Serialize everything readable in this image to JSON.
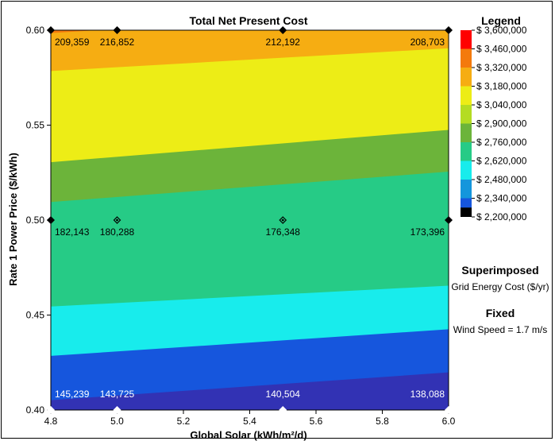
{
  "chart_data": {
    "type": "heatmap",
    "title": "Total Net Present Cost",
    "xlabel": "Global Solar (kWh/m²/d)",
    "ylabel": "Rate 1 Power Price ($/kWh)",
    "xlim": [
      4.8,
      6.0
    ],
    "ylim": [
      0.4,
      0.6
    ],
    "x_ticks": [
      "4.8",
      "5.0",
      "5.2",
      "5.4",
      "5.6",
      "5.8",
      "6.0"
    ],
    "y_ticks": [
      "0.40",
      "0.45",
      "0.50",
      "0.55",
      "0.60"
    ],
    "grid": false,
    "legend": {
      "title": "Legend",
      "position": "right",
      "levels": [
        {
          "label": "$ 3,600,000",
          "value": 3600000,
          "color": "#ff0000"
        },
        {
          "label": "$ 3,460,000",
          "value": 3460000,
          "color": "#f47a0c"
        },
        {
          "label": "$ 3,320,000",
          "value": 3320000,
          "color": "#f6ad12"
        },
        {
          "label": "$ 3,180,000",
          "value": 3180000,
          "color": "#eded16"
        },
        {
          "label": "$ 3,040,000",
          "value": 3040000,
          "color": "#b4dc22"
        },
        {
          "label": "$ 2,900,000",
          "value": 2900000,
          "color": "#6cb43a"
        },
        {
          "label": "$ 2,760,000",
          "value": 2760000,
          "color": "#26cb86"
        },
        {
          "label": "$ 2,620,000",
          "value": 2620000,
          "color": "#18ecec"
        },
        {
          "label": "$ 2,480,000",
          "value": 2480000,
          "color": "#1496dc"
        },
        {
          "label": "$ 2,340,000",
          "value": 2340000,
          "color": "#1656dd"
        },
        {
          "label": "$ 2,200,000",
          "value": 2200000,
          "color": "#3232b4"
        }
      ],
      "below_min_color": "#000000"
    },
    "contour_bands": [
      {
        "color": "#3232b4",
        "x": [
          4.8,
          6.0
        ],
        "y_upper": [
          0.4052,
          0.4198
        ]
      },
      {
        "color": "#1656dd",
        "x": [
          4.8,
          6.0
        ],
        "y_upper": [
          0.4285,
          0.4425
        ]
      },
      {
        "color": "#18ecec",
        "x": [
          4.8,
          6.0
        ],
        "y_upper": [
          0.4545,
          0.4655
        ]
      },
      {
        "color": "#26cb86",
        "x": [
          4.8,
          6.0
        ],
        "y_upper": [
          0.5095,
          0.5255
        ]
      },
      {
        "color": "#6cb43a",
        "x": [
          4.8,
          6.0
        ],
        "y_upper": [
          0.5305,
          0.5475
        ]
      },
      {
        "color": "#eded16",
        "x": [
          4.8,
          6.0
        ],
        "y_upper": [
          0.5785,
          0.5905
        ]
      },
      {
        "color": "#f6ad12",
        "x": [
          4.8,
          6.0
        ],
        "y_upper": [
          0.5985,
          0.6115
        ]
      },
      {
        "color": "#f47a0c",
        "x": [
          4.8,
          6.0
        ],
        "y_upper": [
          0.62,
          0.63
        ]
      }
    ],
    "superimposed": {
      "heading": "Superimposed",
      "variable": "Grid Energy Cost ($/yr)",
      "points": [
        {
          "x": 4.8,
          "y": 0.6,
          "label": "209,359"
        },
        {
          "x": 5.0,
          "y": 0.6,
          "label": "216,852"
        },
        {
          "x": 5.5,
          "y": 0.6,
          "label": "212,192"
        },
        {
          "x": 6.0,
          "y": 0.6,
          "label": "208,703"
        },
        {
          "x": 4.8,
          "y": 0.5,
          "label": "182,143"
        },
        {
          "x": 5.0,
          "y": 0.5,
          "label": "180,288"
        },
        {
          "x": 5.5,
          "y": 0.5,
          "label": "176,348"
        },
        {
          "x": 6.0,
          "y": 0.5,
          "label": "173,396"
        },
        {
          "x": 4.8,
          "y": 0.4,
          "label": "145,239"
        },
        {
          "x": 5.0,
          "y": 0.4,
          "label": "143,725"
        },
        {
          "x": 5.5,
          "y": 0.4,
          "label": "140,504"
        },
        {
          "x": 6.0,
          "y": 0.4,
          "label": "138,088"
        }
      ]
    },
    "fixed": {
      "heading": "Fixed",
      "text": "Wind Speed = 1.7 m/s"
    }
  }
}
